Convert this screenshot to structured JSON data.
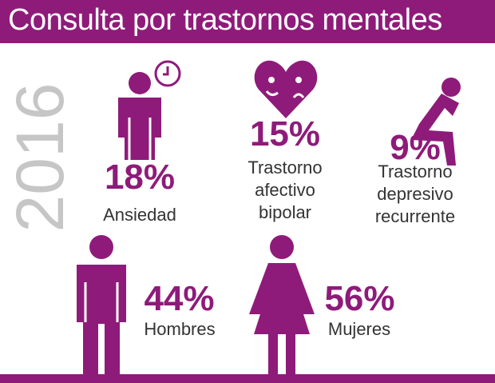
{
  "title": "Consulta por trastornos mentales",
  "year": "2016",
  "accent_color": "#8e1b7a",
  "items": [
    {
      "icon": "person-clock-icon",
      "percent": "18%",
      "label": "Ansiedad"
    },
    {
      "icon": "heart-face-icon",
      "percent": "15%",
      "label_lines": [
        "Trastorno",
        "afectivo",
        "bipolar"
      ]
    },
    {
      "icon": "sitting-person-icon",
      "percent": "9%",
      "label_lines": [
        "Trastorno",
        "depresivo",
        "recurrente"
      ]
    }
  ],
  "gender": [
    {
      "icon": "man-icon",
      "percent": "44%",
      "label": "Hombres"
    },
    {
      "icon": "woman-icon",
      "percent": "56%",
      "label": "Mujeres"
    }
  ]
}
